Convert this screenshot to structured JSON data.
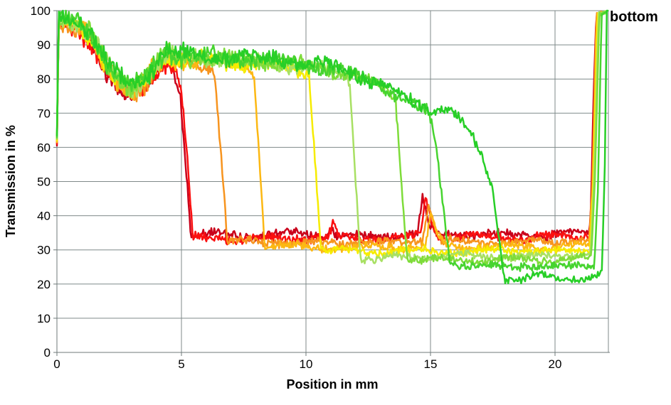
{
  "chart_data": {
    "type": "line",
    "title": "",
    "annotation": "bottom",
    "xlabel": "Position in mm",
    "ylabel": "Transmission in %",
    "xlim": [
      0,
      22.15
    ],
    "ylim": [
      0,
      100
    ],
    "xticks": [
      0,
      5,
      10,
      15,
      20
    ],
    "yticks": [
      0,
      10,
      20,
      30,
      40,
      50,
      60,
      70,
      80,
      90,
      100
    ],
    "grid": true,
    "legend": "none",
    "grid_color": "#7f8a8a",
    "axis_color": "#6f7a7a",
    "text_color": "#000000",
    "series_head_comment": "shared shape 0-4.5mm: spike from ~62 to ~97 at x=0, dip to ~76 near 3mm, local peak ~88 near 4.4mm; triples are [x_mm, transmission_pct, noise_amp]",
    "series_head": [
      [
        0,
        62,
        0
      ],
      [
        0.07,
        97.5,
        1.6
      ],
      [
        0.4,
        96.5,
        2.0
      ],
      [
        0.9,
        95.5,
        2.2
      ],
      [
        1.35,
        92.5,
        2.4
      ],
      [
        1.9,
        85,
        2.4
      ],
      [
        2.5,
        79,
        2.2
      ],
      [
        3.0,
        76.5,
        2.2
      ],
      [
        3.5,
        79,
        2.4
      ],
      [
        4.1,
        84.5,
        2.6
      ],
      [
        4.45,
        87.5,
        2.6
      ]
    ],
    "series": [
      {
        "name": "series-1-dark-red",
        "color": "#c9001a",
        "head_offset": -1.5,
        "drop_position_mm": 5.2,
        "plateau_pct": 34.5,
        "anchors": [
          [
            4.7,
            83,
            1.8
          ],
          [
            4.95,
            76,
            1.5
          ],
          [
            5.15,
            58,
            1.3
          ],
          [
            5.38,
            34.5,
            1.2
          ],
          [
            5.9,
            34.6,
            1.2
          ],
          [
            7.5,
            34.2,
            1.2
          ],
          [
            9.5,
            34.6,
            1.2
          ],
          [
            10.85,
            34.3,
            1.1
          ],
          [
            11.02,
            36.6,
            1.2
          ],
          [
            11.2,
            34.3,
            1.1
          ],
          [
            12.6,
            34.1,
            1.2
          ],
          [
            13.8,
            34.3,
            1.1
          ],
          [
            14.5,
            34.9,
            1.1
          ],
          [
            14.68,
            45.8,
            1.3
          ],
          [
            14.9,
            38,
            1.2
          ],
          [
            15.12,
            34.8,
            1.1
          ],
          [
            16.5,
            34.5,
            1.2
          ],
          [
            18,
            34.2,
            1.2
          ],
          [
            19.5,
            34.5,
            1.2
          ],
          [
            21.3,
            34.6,
            1.0
          ],
          [
            21.42,
            37,
            0.8
          ],
          [
            21.56,
            78,
            1.0
          ],
          [
            21.66,
            99,
            0.5
          ],
          [
            21.95,
            99.3,
            0.4
          ]
        ]
      },
      {
        "name": "series-2-red",
        "color": "#fb1010",
        "head_offset": -1.0,
        "drop_position_mm": 5.3,
        "plateau_pct": 33.4,
        "anchors": [
          [
            4.75,
            83,
            1.8
          ],
          [
            5.02,
            75,
            1.5
          ],
          [
            5.25,
            55,
            1.3
          ],
          [
            5.45,
            33.2,
            1.2
          ],
          [
            6.1,
            33.5,
            1.2
          ],
          [
            7.8,
            33.2,
            1.2
          ],
          [
            9.8,
            33.6,
            1.2
          ],
          [
            10.9,
            33.4,
            1.1
          ],
          [
            11.08,
            37.6,
            1.3
          ],
          [
            11.3,
            33.5,
            1.1
          ],
          [
            12.9,
            33.3,
            1.2
          ],
          [
            14.1,
            33.6,
            1.1
          ],
          [
            14.6,
            34.6,
            1.1
          ],
          [
            14.8,
            45,
            1.3
          ],
          [
            15.05,
            38.5,
            1.2
          ],
          [
            15.3,
            34,
            1.1
          ],
          [
            16.9,
            33.8,
            1.2
          ],
          [
            18.6,
            33.5,
            1.2
          ],
          [
            20.1,
            33.8,
            1.2
          ],
          [
            21.36,
            34,
            1.0
          ],
          [
            21.48,
            38,
            0.8
          ],
          [
            21.61,
            78,
            1.0
          ],
          [
            21.71,
            99,
            0.5
          ],
          [
            22.0,
            99.4,
            0.4
          ]
        ]
      },
      {
        "name": "series-3-orange",
        "color": "#f7941e",
        "head_offset": -0.5,
        "drop_position_mm": 6.6,
        "plateau_pct": 32.3,
        "anchors": [
          [
            4.78,
            85,
            2.2
          ],
          [
            5.5,
            85,
            2.0
          ],
          [
            6.05,
            84,
            1.8
          ],
          [
            6.32,
            82.5,
            1.6
          ],
          [
            6.6,
            58,
            1.3
          ],
          [
            6.85,
            32.4,
            1.2
          ],
          [
            7.6,
            32.5,
            1.1
          ],
          [
            9.1,
            32.2,
            1.1
          ],
          [
            10.6,
            32,
            1.1
          ],
          [
            12.1,
            32.3,
            1.1
          ],
          [
            13.6,
            32,
            1.1
          ],
          [
            14.68,
            33,
            1.1
          ],
          [
            14.92,
            43,
            1.3
          ],
          [
            15.18,
            37,
            1.2
          ],
          [
            15.45,
            32.5,
            1.1
          ],
          [
            17.1,
            32.3,
            1.1
          ],
          [
            19.1,
            32.5,
            1.1
          ],
          [
            21.36,
            32.8,
            1.0
          ],
          [
            21.5,
            48,
            1.0
          ],
          [
            21.66,
            99,
            0.5
          ],
          [
            21.98,
            99.4,
            0.4
          ]
        ]
      },
      {
        "name": "series-4-amber",
        "color": "#fcb813",
        "head_offset": -0.5,
        "drop_position_mm": 8.1,
        "plateau_pct": 31.0,
        "anchors": [
          [
            4.78,
            85.2,
            2.2
          ],
          [
            5.7,
            85.3,
            2.0
          ],
          [
            6.9,
            84.6,
            1.8
          ],
          [
            7.6,
            83.6,
            1.7
          ],
          [
            7.92,
            82,
            1.5
          ],
          [
            8.12,
            58,
            1.3
          ],
          [
            8.35,
            30.8,
            1.1
          ],
          [
            9.6,
            31,
            1.1
          ],
          [
            11.1,
            30.6,
            1.1
          ],
          [
            12.6,
            31,
            1.1
          ],
          [
            14.1,
            30.8,
            1.1
          ],
          [
            14.8,
            31.6,
            1.1
          ],
          [
            15.02,
            39.5,
            1.3
          ],
          [
            15.28,
            34,
            1.2
          ],
          [
            15.55,
            31,
            1.1
          ],
          [
            17.6,
            31,
            1.1
          ],
          [
            19.6,
            30.8,
            1.1
          ],
          [
            21.38,
            31.2,
            1.0
          ],
          [
            21.52,
            48,
            1.0
          ],
          [
            21.69,
            99,
            0.5
          ],
          [
            21.99,
            99.4,
            0.4
          ]
        ]
      },
      {
        "name": "series-5-yellow",
        "color": "#f6ec00",
        "head_offset": 0,
        "drop_position_mm": 10.4,
        "plateau_pct": 29.7,
        "anchors": [
          [
            4.78,
            85.5,
            2.2
          ],
          [
            5.9,
            85.6,
            2.0
          ],
          [
            7.3,
            84.9,
            1.9
          ],
          [
            8.7,
            84,
            1.8
          ],
          [
            9.7,
            82.8,
            1.8
          ],
          [
            10.12,
            81.5,
            1.6
          ],
          [
            10.38,
            55,
            1.3
          ],
          [
            10.6,
            29.8,
            1.1
          ],
          [
            11.6,
            29.8,
            1.0
          ],
          [
            13.1,
            29.5,
            1.0
          ],
          [
            14.6,
            29.8,
            1.0
          ],
          [
            16.1,
            29.5,
            1.0
          ],
          [
            18.1,
            29.8,
            1.0
          ],
          [
            20.1,
            29.5,
            1.0
          ],
          [
            21.4,
            30,
            0.9
          ],
          [
            21.55,
            52,
            1.0
          ],
          [
            21.71,
            99,
            0.5
          ],
          [
            22.01,
            99.4,
            0.4
          ]
        ]
      },
      {
        "name": "series-6-yellow-green",
        "color": "#a8e063",
        "head_offset": 0.5,
        "drop_position_mm": 11.9,
        "plateau_pct": 28.0,
        "anchors": [
          [
            4.78,
            86,
            2.2
          ],
          [
            6.1,
            86,
            2.0
          ],
          [
            7.6,
            85.3,
            1.9
          ],
          [
            9.1,
            84.4,
            1.8
          ],
          [
            10.6,
            83,
            1.8
          ],
          [
            11.35,
            81.5,
            1.7
          ],
          [
            11.75,
            80,
            1.5
          ],
          [
            11.98,
            52,
            1.3
          ],
          [
            12.2,
            27.3,
            1.1
          ],
          [
            12.7,
            27,
            1.0
          ],
          [
            13.6,
            27.9,
            1.0
          ],
          [
            15.1,
            28.1,
            1.0
          ],
          [
            16.6,
            28.4,
            1.0
          ],
          [
            18.1,
            28,
            1.0
          ],
          [
            19.6,
            28.3,
            1.0
          ],
          [
            21.43,
            28.6,
            0.9
          ],
          [
            21.58,
            52,
            1.0
          ],
          [
            21.75,
            99,
            0.5
          ],
          [
            22.02,
            99.4,
            0.4
          ]
        ]
      },
      {
        "name": "series-7-light-green",
        "color": "#7edc3a",
        "head_offset": 0.5,
        "drop_position_mm": 13.7,
        "plateau_pct": 27.1,
        "anchors": [
          [
            4.78,
            86.2,
            2.2
          ],
          [
            6.3,
            86.1,
            2.0
          ],
          [
            8.1,
            85.1,
            1.9
          ],
          [
            9.9,
            83.9,
            1.8
          ],
          [
            11.3,
            82,
            1.8
          ],
          [
            12.4,
            79.6,
            1.7
          ],
          [
            13.15,
            77,
            1.6
          ],
          [
            13.6,
            74,
            1.5
          ],
          [
            13.85,
            48,
            1.3
          ],
          [
            14.06,
            27.2,
            1.1
          ],
          [
            15.1,
            27.3,
            1.0
          ],
          [
            16.3,
            26.8,
            1.0
          ],
          [
            17.6,
            27.4,
            1.0
          ],
          [
            19.1,
            27,
            1.0
          ],
          [
            20.6,
            27.3,
            1.0
          ],
          [
            21.46,
            27.6,
            0.9
          ],
          [
            21.61,
            52,
            1.0
          ],
          [
            21.78,
            99,
            0.5
          ],
          [
            22.04,
            99.4,
            0.4
          ]
        ]
      },
      {
        "name": "series-8-green",
        "color": "#46d42f",
        "head_offset": 1.0,
        "drop_position_mm": 15.5,
        "plateau_pct": 25.3,
        "anchors": [
          [
            4.78,
            86.6,
            2.3
          ],
          [
            6.6,
            86.4,
            2.1
          ],
          [
            8.6,
            85.4,
            2.0
          ],
          [
            10.4,
            83.9,
            1.9
          ],
          [
            11.9,
            81.4,
            1.8
          ],
          [
            12.9,
            78.6,
            1.7
          ],
          [
            13.7,
            75,
            1.6
          ],
          [
            14.35,
            72.4,
            1.5
          ],
          [
            14.92,
            70.2,
            1.4
          ],
          [
            15.2,
            61,
            1.5
          ],
          [
            15.5,
            43,
            1.4
          ],
          [
            15.78,
            26.6,
            1.2
          ],
          [
            16.6,
            25.6,
            1.0
          ],
          [
            17.9,
            25,
            1.0
          ],
          [
            19.1,
            25.5,
            1.0
          ],
          [
            20.4,
            25,
            1.0
          ],
          [
            21.25,
            25.3,
            1.0
          ],
          [
            21.58,
            25.6,
            0.9
          ],
          [
            21.72,
            48,
            1.0
          ],
          [
            21.87,
            99,
            0.5
          ],
          [
            22.06,
            99.5,
            0.4
          ]
        ]
      },
      {
        "name": "series-9-bright-green",
        "color": "#27cf27",
        "head_offset": 1.5,
        "drop_position_mm": 17.8,
        "plateau_pct": 21.8,
        "anchors": [
          [
            4.78,
            87,
            2.3
          ],
          [
            6.9,
            86.6,
            2.1
          ],
          [
            9.1,
            85.6,
            2.0
          ],
          [
            10.9,
            83.9,
            1.9
          ],
          [
            12.3,
            81,
            1.8
          ],
          [
            13.3,
            77.6,
            1.7
          ],
          [
            14.05,
            74,
            1.6
          ],
          [
            14.75,
            71.4,
            1.5
          ],
          [
            15.12,
            70.5,
            1.4
          ],
          [
            15.48,
            71.9,
            1.3
          ],
          [
            15.82,
            70.8,
            1.3
          ],
          [
            16.25,
            67.5,
            1.4
          ],
          [
            16.75,
            61.5,
            1.5
          ],
          [
            17.18,
            55,
            1.5
          ],
          [
            17.5,
            48,
            1.3
          ],
          [
            17.75,
            34,
            1.2
          ],
          [
            17.98,
            21.4,
            1.1
          ],
          [
            18.6,
            21.5,
            1.0
          ],
          [
            19.35,
            22.7,
            1.1
          ],
          [
            20.15,
            21.4,
            1.0
          ],
          [
            21.05,
            22,
            1.0
          ],
          [
            21.65,
            22.4,
            1.0
          ],
          [
            21.88,
            23.5,
            0.8
          ],
          [
            22.0,
            55,
            0.8
          ],
          [
            22.08,
            99.5,
            0.4
          ],
          [
            22.13,
            100,
            0.3
          ]
        ]
      }
    ]
  }
}
